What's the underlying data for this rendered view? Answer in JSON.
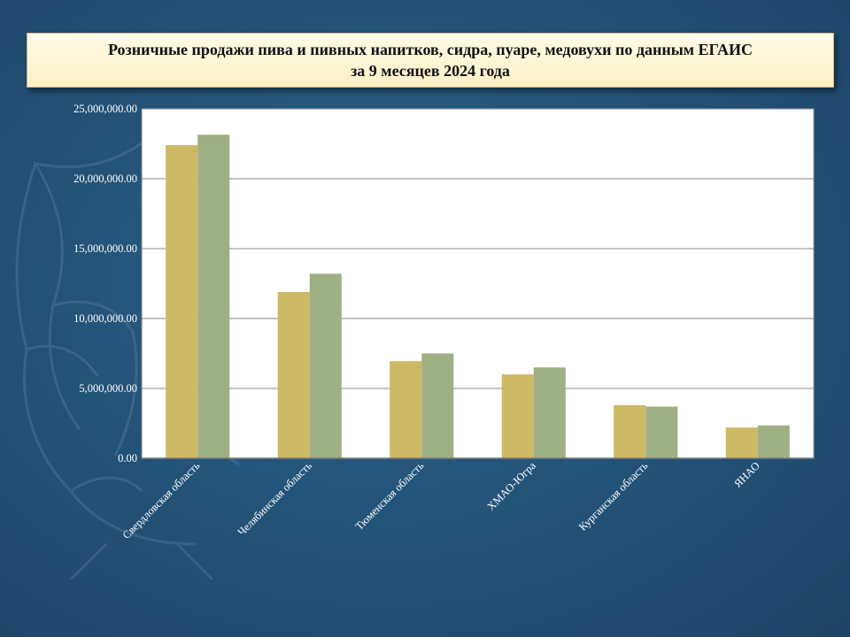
{
  "header": {
    "title_line1": "Розничные продажи пива и пивных напитков, сидра, пуаре, медовухи по данным ЕГАИС",
    "title_line2": "за 9 месяцев 2024 года"
  },
  "colors": {
    "series1": "#cdb865",
    "series2": "#9db083",
    "plot_bg": "#ffffff",
    "grid": "#8a8a8a"
  },
  "chart_data": {
    "type": "bar",
    "title": "Розничные продажи пива и пивных напитков, сидра, пуаре, медовухи по данным ЕГАИС за 9 месяцев 2024 года",
    "xlabel": "",
    "ylabel": "",
    "ylim": [
      0,
      25000000
    ],
    "yticks": [
      0,
      5000000,
      10000000,
      15000000,
      20000000,
      25000000
    ],
    "ytick_labels": [
      "0.00",
      "5,000,000.00",
      "10,000,000.00",
      "15,000,000.00",
      "20,000,000.00",
      "25,000,000.00"
    ],
    "grid": true,
    "legend": "none",
    "categories": [
      "Свердловская область",
      "Челябинская область",
      "Тюменская область",
      "ХМАО-Югра",
      "Курганская область",
      "ЯНАО"
    ],
    "series": [
      {
        "values": [
          22400000,
          11900000,
          6950000,
          6000000,
          3800000,
          2200000
        ]
      },
      {
        "values": [
          23150000,
          13200000,
          7500000,
          6500000,
          3700000,
          2350000
        ]
      }
    ]
  }
}
